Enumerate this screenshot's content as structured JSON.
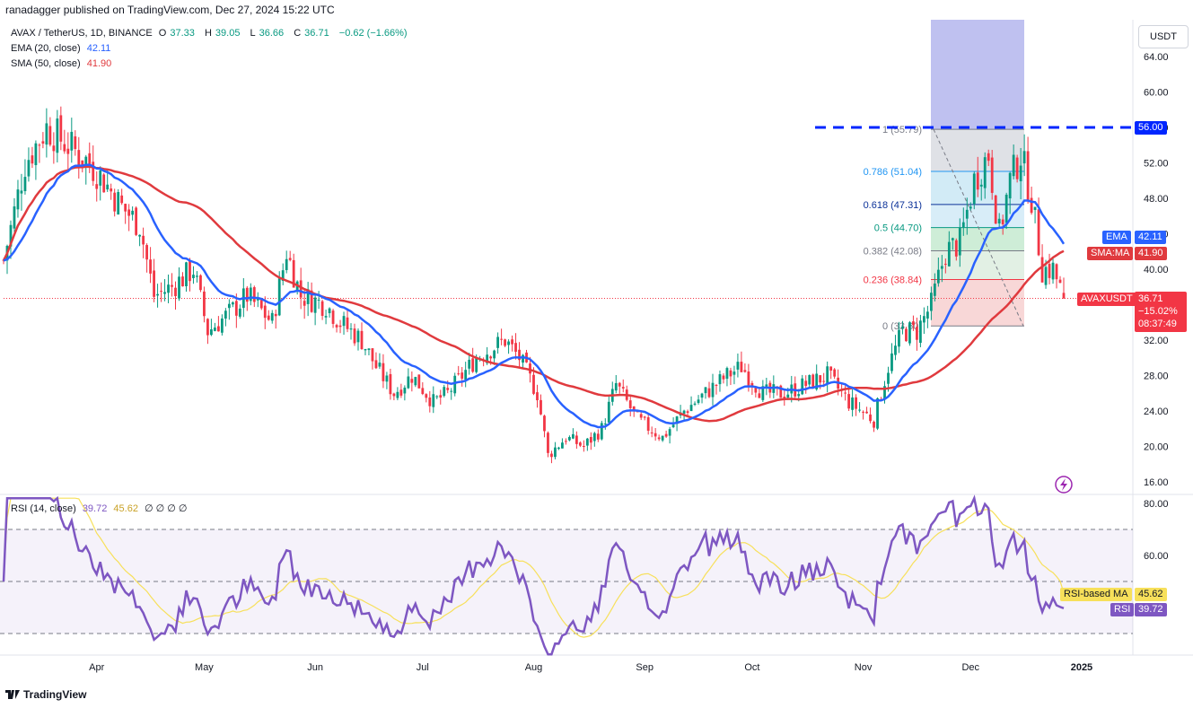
{
  "header": {
    "text": "ranadagger published on TradingView.com, Dec 27, 2024 15:22 UTC"
  },
  "legend": {
    "main": {
      "symbol": "AVAX / TetherUS, 1D, BINANCE",
      "o_label": "O",
      "o": "37.33",
      "h_label": "H",
      "h": "39.05",
      "l_label": "L",
      "l": "36.66",
      "c_label": "C",
      "c": "36.71",
      "chg": "−0.62 (−1.66%)"
    },
    "ema": {
      "label": "EMA (20, close)",
      "value": "42.11"
    },
    "sma": {
      "label": "SMA (50, close)",
      "value": "41.90"
    },
    "rsi": {
      "label": "RSI (14, close)",
      "value": "39.72",
      "ma_value": "45.62",
      "extra": "∅ ∅ ∅ ∅"
    }
  },
  "currency_button": "USDT",
  "price_axis": [
    "64.00",
    "60.00",
    "56.00",
    "52.00",
    "48.00",
    "44.00",
    "40.00",
    "36.00",
    "32.00",
    "28.00",
    "24.00",
    "20.00",
    "16.00"
  ],
  "rsi_axis": [
    "80.00",
    "60.00"
  ],
  "time_axis": [
    "Apr",
    "May",
    "Jun",
    "Jul",
    "Aug",
    "Sep",
    "Oct",
    "Nov",
    "Dec",
    "2025"
  ],
  "badges": {
    "level_56": "56.00",
    "ema_label": "EMA",
    "ema_value": "42.11",
    "sma_label": "SMA:MA",
    "sma_value": "41.90",
    "sym_label": "AVAXUSDT",
    "price": "36.71",
    "pct": "−15.02%",
    "timer": "08:37:49",
    "rsi_ma_label": "RSI-based MA",
    "rsi_ma_value": "45.62",
    "rsi_label": "RSI",
    "rsi_value": "39.72"
  },
  "fib_levels": [
    {
      "ratio": "1",
      "text": "1 (55.79)",
      "price": 55.79
    },
    {
      "ratio": "0.786",
      "text": "0.786 (51.04)",
      "price": 51.04
    },
    {
      "ratio": "0.618",
      "text": "0.618 (47.31)",
      "price": 47.31
    },
    {
      "ratio": "0.5",
      "text": "0.5 (44.70)",
      "price": 44.7
    },
    {
      "ratio": "0.382",
      "text": "0.382 (42.08)",
      "price": 42.08
    },
    {
      "ratio": "0.236",
      "text": "0.236 (38.84)",
      "price": 38.84
    },
    {
      "ratio": "0",
      "text": "0 (33.60)",
      "price": 33.6
    }
  ],
  "footer": "TradingView",
  "colors": {
    "up": "#089981",
    "down": "#f23645",
    "ema": "#2962ff",
    "sma": "#e03a3e",
    "rsi": "#7e57c2",
    "rsi_ma": "#f7e05a",
    "hline": "#0026ff"
  },
  "chart_data": {
    "type": "candlestick",
    "symbol": "AVAX / TetherUS",
    "interval": "1D",
    "x_range": [
      "2024-03-06",
      "2024-12-27"
    ],
    "ylim": [
      15,
      66
    ],
    "horizontal_line": 56.0,
    "ema20_end": 42.11,
    "sma50_end": 41.9,
    "last_close": 36.71,
    "rsi_range": [
      20,
      80
    ],
    "rsi_levels": [
      70,
      50,
      30
    ],
    "rsi_last": 39.72,
    "rsi_ma_last": 45.62,
    "close_series": [
      {
        "date": "2024-03-06",
        "close": 41
      },
      {
        "date": "2024-03-12",
        "close": 52
      },
      {
        "date": "2024-03-18",
        "close": 56
      },
      {
        "date": "2024-03-24",
        "close": 54
      },
      {
        "date": "2024-03-30",
        "close": 52
      },
      {
        "date": "2024-04-03",
        "close": 50
      },
      {
        "date": "2024-04-08",
        "close": 47
      },
      {
        "date": "2024-04-13",
        "close": 45
      },
      {
        "date": "2024-04-17",
        "close": 37
      },
      {
        "date": "2024-04-22",
        "close": 38
      },
      {
        "date": "2024-04-28",
        "close": 40
      },
      {
        "date": "2024-05-02",
        "close": 33
      },
      {
        "date": "2024-05-08",
        "close": 35
      },
      {
        "date": "2024-05-13",
        "close": 37
      },
      {
        "date": "2024-05-20",
        "close": 34
      },
      {
        "date": "2024-05-24",
        "close": 42
      },
      {
        "date": "2024-05-28",
        "close": 37
      },
      {
        "date": "2024-06-04",
        "close": 36
      },
      {
        "date": "2024-06-08",
        "close": 34
      },
      {
        "date": "2024-06-14",
        "close": 32
      },
      {
        "date": "2024-06-18",
        "close": 29
      },
      {
        "date": "2024-06-23",
        "close": 26
      },
      {
        "date": "2024-06-28",
        "close": 28
      },
      {
        "date": "2024-07-04",
        "close": 25
      },
      {
        "date": "2024-07-08",
        "close": 26
      },
      {
        "date": "2024-07-12",
        "close": 28
      },
      {
        "date": "2024-07-16",
        "close": 30
      },
      {
        "date": "2024-07-20",
        "close": 31
      },
      {
        "date": "2024-07-24",
        "close": 32
      },
      {
        "date": "2024-07-28",
        "close": 30
      },
      {
        "date": "2024-08-02",
        "close": 26
      },
      {
        "date": "2024-08-05",
        "close": 19
      },
      {
        "date": "2024-08-10",
        "close": 21
      },
      {
        "date": "2024-08-15",
        "close": 20
      },
      {
        "date": "2024-08-20",
        "close": 22
      },
      {
        "date": "2024-08-24",
        "close": 27
      },
      {
        "date": "2024-08-30",
        "close": 23
      },
      {
        "date": "2024-09-06",
        "close": 21
      },
      {
        "date": "2024-09-12",
        "close": 24
      },
      {
        "date": "2024-09-18",
        "close": 26
      },
      {
        "date": "2024-09-24",
        "close": 28
      },
      {
        "date": "2024-09-28",
        "close": 29
      },
      {
        "date": "2024-10-04",
        "close": 26
      },
      {
        "date": "2024-10-10",
        "close": 26
      },
      {
        "date": "2024-10-16",
        "close": 27
      },
      {
        "date": "2024-10-22",
        "close": 28
      },
      {
        "date": "2024-10-28",
        "close": 25
      },
      {
        "date": "2024-11-04",
        "close": 23
      },
      {
        "date": "2024-11-08",
        "close": 29
      },
      {
        "date": "2024-11-12",
        "close": 33
      },
      {
        "date": "2024-11-16",
        "close": 33
      },
      {
        "date": "2024-11-20",
        "close": 36
      },
      {
        "date": "2024-11-24",
        "close": 42
      },
      {
        "date": "2024-11-28",
        "close": 43
      },
      {
        "date": "2024-12-02",
        "close": 50
      },
      {
        "date": "2024-12-06",
        "close": 53
      },
      {
        "date": "2024-12-09",
        "close": 44
      },
      {
        "date": "2024-12-12",
        "close": 50
      },
      {
        "date": "2024-12-15",
        "close": 53
      },
      {
        "date": "2024-12-18",
        "close": 48
      },
      {
        "date": "2024-12-21",
        "close": 40
      },
      {
        "date": "2024-12-24",
        "close": 40
      },
      {
        "date": "2024-12-27",
        "close": 36.71
      }
    ]
  }
}
